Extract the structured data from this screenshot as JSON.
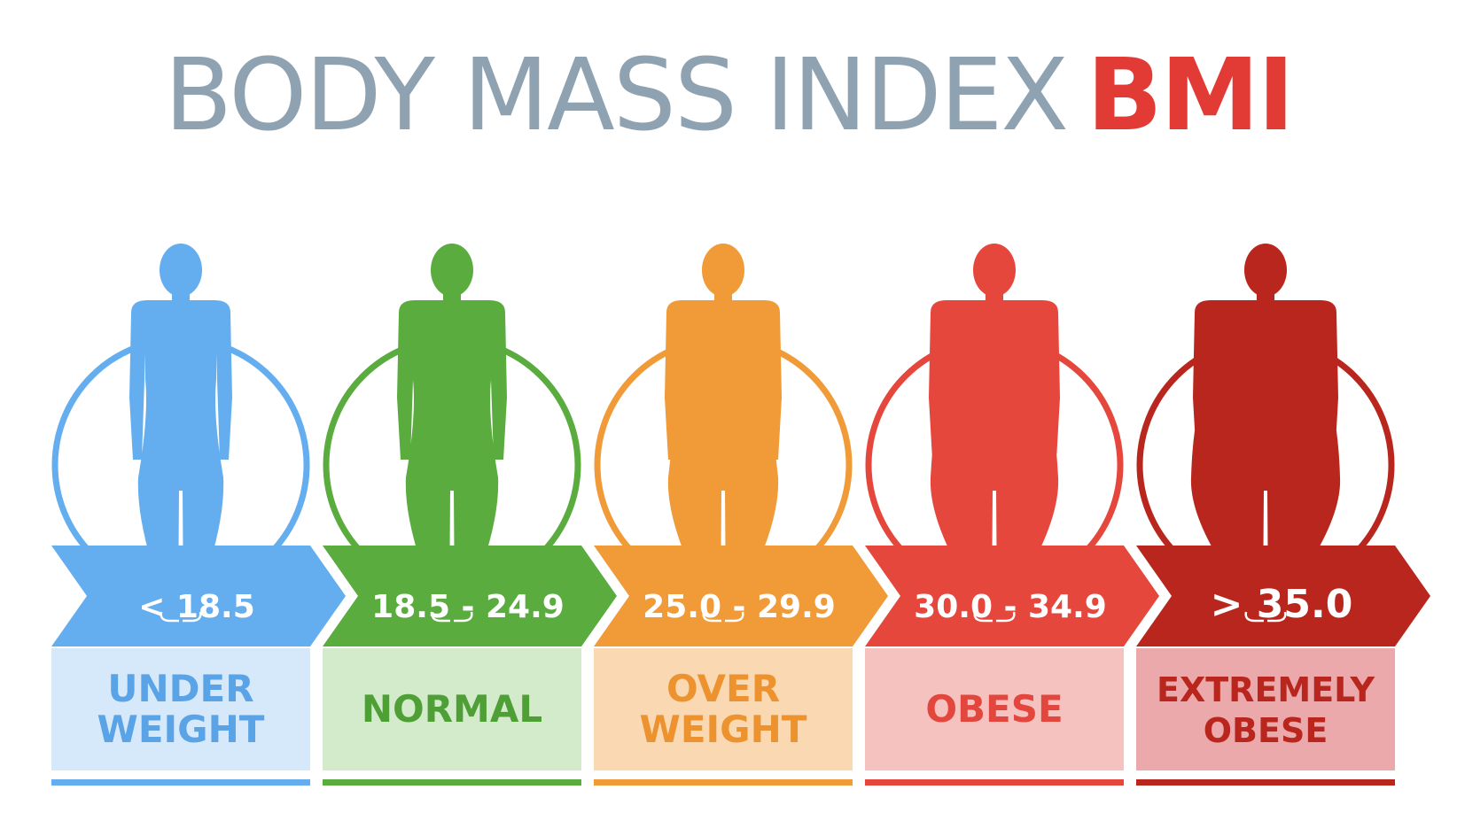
{
  "title": {
    "main": "BODY MASS INDEX",
    "accent": "BMI"
  },
  "colors": {
    "title_main": "#8fa2b2",
    "title_accent": "#e23a34"
  },
  "categories": [
    {
      "range": "< 18.5",
      "label_lines": [
        "UNDER",
        "WEIGHT"
      ],
      "color": "#64aef0",
      "light": "#d6e9fb",
      "text_color": "#5aa3e6",
      "body_icon": "slim-body-silhouette-icon"
    },
    {
      "range": "18.5 - 24.9",
      "label_lines": [
        "NORMAL"
      ],
      "color": "#5aac3f",
      "light": "#d4ebcb",
      "text_color": "#4f9f37",
      "body_icon": "normal-body-silhouette-icon"
    },
    {
      "range": "25.0 - 29.9",
      "label_lines": [
        "OVER",
        "WEIGHT"
      ],
      "color": "#f09a38",
      "light": "#fad8b1",
      "text_color": "#ec9330",
      "body_icon": "overweight-body-silhouette-icon"
    },
    {
      "range": "30.0 - 34.9",
      "label_lines": [
        "OBESE"
      ],
      "color": "#e6473c",
      "light": "#f6c2bf",
      "text_color": "#e2463c",
      "body_icon": "obese-body-silhouette-icon"
    },
    {
      "range": "> 35.0",
      "label_lines": [
        "EXTREMELY",
        "OBESE"
      ],
      "color": "#b8261d",
      "light": "#eca9ac",
      "text_color": "#b8261d",
      "body_icon": "extremely-obese-body-silhouette-icon"
    }
  ]
}
